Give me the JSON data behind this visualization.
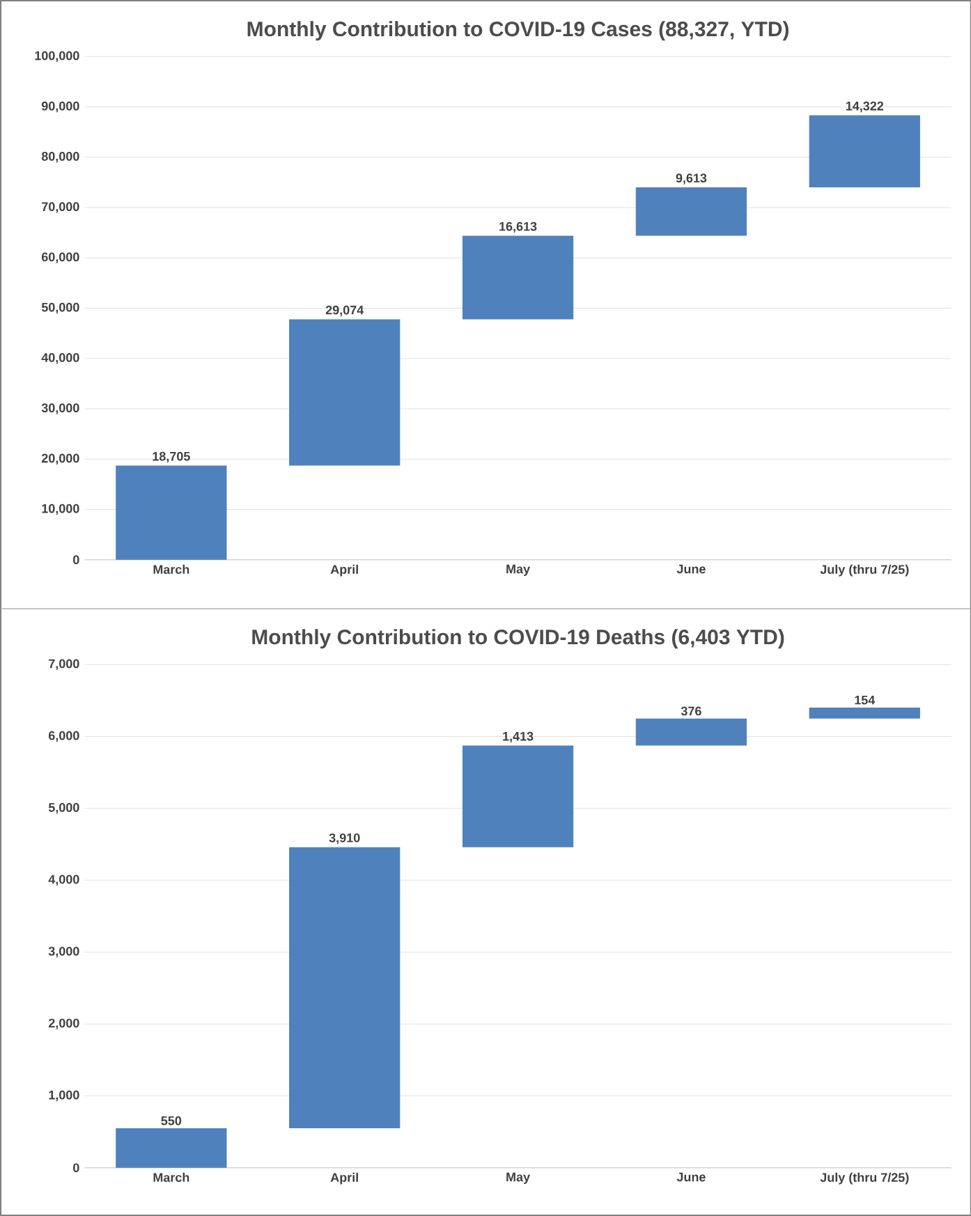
{
  "chart_data": [
    {
      "type": "bar",
      "title": "Monthly Contribution to COVID-19 Cases (88,327, YTD)",
      "categories": [
        "March",
        "April",
        "May",
        "June",
        "July (thru 7/25)"
      ],
      "values": [
        18705,
        29074,
        16613,
        9613,
        14322
      ],
      "value_labels": [
        "18,705",
        "29,074",
        "16,613",
        "9,613",
        "14,322"
      ],
      "base": [
        0,
        18705,
        47779,
        64392,
        74005
      ],
      "color": "#4f81bd",
      "grid": "y",
      "ylim": [
        0,
        100000
      ],
      "yticks": [
        {
          "value": 0,
          "label": "0"
        },
        {
          "value": 10000,
          "label": "10,000"
        },
        {
          "value": 20000,
          "label": "20,000"
        },
        {
          "value": 30000,
          "label": "30,000"
        },
        {
          "value": 40000,
          "label": "40,000"
        },
        {
          "value": 50000,
          "label": "50,000"
        },
        {
          "value": 60000,
          "label": "60,000"
        },
        {
          "value": 70000,
          "label": "70,000"
        },
        {
          "value": 80000,
          "label": "80,000"
        },
        {
          "value": 90000,
          "label": "90,000"
        },
        {
          "value": 100000,
          "label": "100,000"
        }
      ]
    },
    {
      "type": "bar",
      "title": "Monthly Contribution to COVID-19 Deaths (6,403 YTD)",
      "categories": [
        "March",
        "April",
        "May",
        "June",
        "July (thru 7/25)"
      ],
      "values": [
        550,
        3910,
        1413,
        376,
        154
      ],
      "value_labels": [
        "550",
        "3,910",
        "1,413",
        "376",
        "154"
      ],
      "base": [
        0,
        550,
        4460,
        5873,
        6249
      ],
      "color": "#4f81bd",
      "grid": "y",
      "ylim": [
        0,
        7000
      ],
      "yticks": [
        {
          "value": 0,
          "label": "0"
        },
        {
          "value": 1000,
          "label": "1,000"
        },
        {
          "value": 2000,
          "label": "2,000"
        },
        {
          "value": 3000,
          "label": "3,000"
        },
        {
          "value": 4000,
          "label": "4,000"
        },
        {
          "value": 5000,
          "label": "5,000"
        },
        {
          "value": 6000,
          "label": "6,000"
        },
        {
          "value": 7000,
          "label": "7,000"
        }
      ]
    }
  ]
}
